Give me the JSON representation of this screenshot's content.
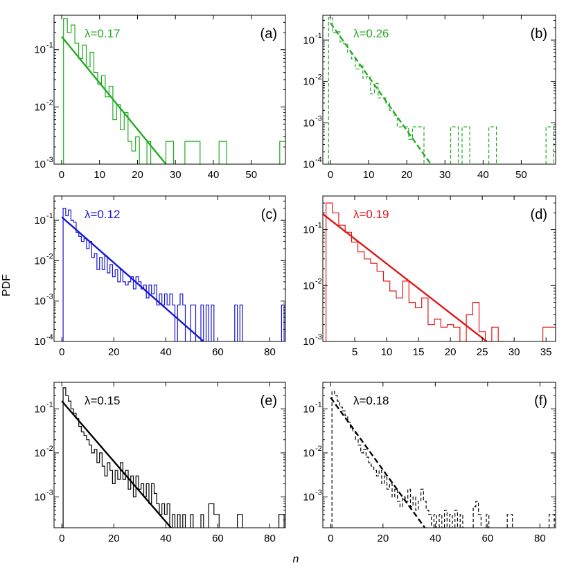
{
  "figure": {
    "ylabel": "PDF",
    "xlabel": "n"
  },
  "chart_data": [
    {
      "type": "line",
      "panel_label": "(a)",
      "lambda_label": "λ=0.17",
      "color": "#22aa22",
      "dashed": false,
      "xlim": [
        -2,
        59
      ],
      "ylim": [
        0.001,
        0.4
      ],
      "xticks": [
        0,
        10,
        20,
        30,
        40,
        50
      ],
      "xtick_labels": [
        "0",
        "10",
        "20",
        "30",
        "40",
        "50"
      ],
      "yticks": [
        0.001,
        0.01,
        0.1
      ],
      "ytick_labels": [
        "10",
        "10",
        "10"
      ],
      "ytick_exponents": [
        "-3",
        "-2",
        "-1"
      ],
      "fit": {
        "x": [
          0,
          27.5
        ],
        "y": [
          0.17,
          0.001
        ]
      },
      "histogram": [
        [
          1,
          0.35
        ],
        [
          2,
          0.2
        ],
        [
          3,
          0.27
        ],
        [
          4,
          0.13
        ],
        [
          5,
          0.07
        ],
        [
          6,
          0.12
        ],
        [
          7,
          0.05
        ],
        [
          8,
          0.09
        ],
        [
          9,
          0.04
        ],
        [
          10,
          0.025
        ],
        [
          11,
          0.035
        ],
        [
          12,
          0.015
        ],
        [
          13,
          0.023
        ],
        [
          14,
          0.006
        ],
        [
          15,
          0.011
        ],
        [
          16,
          0.004
        ],
        [
          17,
          0.008
        ],
        [
          18,
          0.0025
        ],
        [
          19,
          0.0017
        ],
        [
          20,
          0.003
        ],
        [
          21,
          0.001
        ],
        [
          23,
          0.0025
        ],
        [
          24,
          0.001
        ],
        [
          28,
          0.0025
        ],
        [
          29,
          0.0025
        ],
        [
          33,
          0.0025
        ],
        [
          34,
          0.0025
        ],
        [
          35,
          0.0025
        ],
        [
          36,
          0.0025
        ],
        [
          42,
          0.0025
        ],
        [
          43,
          0.0025
        ],
        [
          58,
          0.0025
        ],
        [
          59,
          0.0025
        ]
      ]
    },
    {
      "type": "line",
      "panel_label": "(b)",
      "lambda_label": "λ=0.26",
      "color": "#22aa22",
      "dashed": true,
      "xlim": [
        -2,
        59
      ],
      "ylim": [
        0.0001,
        0.4
      ],
      "xticks": [
        0,
        10,
        20,
        30,
        40,
        50
      ],
      "xtick_labels": [
        "0",
        "10",
        "20",
        "30",
        "40",
        "50"
      ],
      "yticks": [
        0.0001,
        0.001,
        0.01,
        0.1
      ],
      "ytick_labels": [
        "10",
        "10",
        "10",
        "10"
      ],
      "ytick_exponents": [
        "-4",
        "-3",
        "-2",
        "-1"
      ],
      "fit": {
        "x": [
          0,
          26.3
        ],
        "y": [
          0.26,
          0.0001
        ]
      },
      "histogram": [
        [
          0,
          0.35
        ],
        [
          1,
          0.15
        ],
        [
          2,
          0.16
        ],
        [
          3,
          0.09
        ],
        [
          4,
          0.08
        ],
        [
          5,
          0.05
        ],
        [
          6,
          0.035
        ],
        [
          7,
          0.02
        ],
        [
          8,
          0.025
        ],
        [
          9,
          0.012
        ],
        [
          10,
          0.013
        ],
        [
          11,
          0.005
        ],
        [
          12,
          0.009
        ],
        [
          13,
          0.004
        ],
        [
          14,
          0.004
        ],
        [
          15,
          0.003
        ],
        [
          16,
          0.002
        ],
        [
          17,
          0.0015
        ],
        [
          18,
          0.0008
        ],
        [
          19,
          0.0008
        ],
        [
          20,
          0.0008
        ],
        [
          21,
          0.0004
        ],
        [
          22,
          0.0008
        ],
        [
          23,
          0.0008
        ],
        [
          24,
          0.0008
        ],
        [
          32,
          0.0008
        ],
        [
          33,
          0.0008
        ],
        [
          35,
          0.0008
        ],
        [
          36,
          0.0008
        ],
        [
          42,
          0.0008
        ],
        [
          43,
          0.0008
        ],
        [
          57,
          0.0008
        ],
        [
          58,
          0.0008
        ]
      ]
    },
    {
      "type": "line",
      "panel_label": "(c)",
      "lambda_label": "λ=0.12",
      "color": "#1515d6",
      "dashed": false,
      "xlim": [
        -3,
        86
      ],
      "ylim": [
        0.0001,
        0.4
      ],
      "xticks": [
        0,
        20,
        40,
        60,
        80
      ],
      "xtick_labels": [
        "0",
        "20",
        "40",
        "60",
        "80"
      ],
      "yticks": [
        0.0001,
        0.001,
        0.01,
        0.1
      ],
      "ytick_labels": [
        "10",
        "10",
        "10",
        "10"
      ],
      "ytick_exponents": [
        "-4",
        "-3",
        "-2",
        "-1"
      ],
      "fit": {
        "x": [
          0,
          54.5
        ],
        "y": [
          0.12,
          0.0001
        ]
      },
      "histogram": [
        [
          1,
          0.2
        ],
        [
          2,
          0.13
        ],
        [
          3,
          0.18
        ],
        [
          4,
          0.1
        ],
        [
          5,
          0.09
        ],
        [
          6,
          0.05
        ],
        [
          7,
          0.04
        ],
        [
          8,
          0.03
        ],
        [
          9,
          0.035
        ],
        [
          10,
          0.02
        ],
        [
          11,
          0.03
        ],
        [
          12,
          0.012
        ],
        [
          13,
          0.015
        ],
        [
          14,
          0.006
        ],
        [
          15,
          0.012
        ],
        [
          16,
          0.006
        ],
        [
          17,
          0.013
        ],
        [
          18,
          0.005
        ],
        [
          19,
          0.008
        ],
        [
          20,
          0.004
        ],
        [
          21,
          0.006
        ],
        [
          22,
          0.003
        ],
        [
          23,
          0.006
        ],
        [
          24,
          0.003
        ],
        [
          25,
          0.0025
        ],
        [
          26,
          0.003
        ],
        [
          27,
          0.004
        ],
        [
          28,
          0.002
        ],
        [
          29,
          0.004
        ],
        [
          30,
          0.003
        ],
        [
          31,
          0.002
        ],
        [
          32,
          0.0025
        ],
        [
          33,
          0.0012
        ],
        [
          34,
          0.0025
        ],
        [
          35,
          0.0015
        ],
        [
          36,
          0.0025
        ],
        [
          37,
          0.0008
        ],
        [
          38,
          0.0015
        ],
        [
          39,
          0.0008
        ],
        [
          40,
          0.0015
        ],
        [
          41,
          0.0008
        ],
        [
          42,
          0.0015
        ],
        [
          43,
          0.0008
        ],
        [
          45,
          0.0008
        ],
        [
          46,
          0.0015
        ],
        [
          47,
          0.0008
        ],
        [
          50,
          0.0008
        ],
        [
          51,
          0.0008
        ],
        [
          54,
          0.0008
        ],
        [
          56,
          0.0008
        ],
        [
          58,
          0.0008
        ],
        [
          67,
          0.0008
        ],
        [
          69,
          0.0008
        ],
        [
          85,
          0.0008
        ]
      ]
    },
    {
      "type": "line",
      "panel_label": "(d)",
      "lambda_label": "λ=0.19",
      "color": "#e01515",
      "dashed": false,
      "xlim": [
        0,
        36.5
      ],
      "ylim": [
        0.001,
        0.4
      ],
      "xticks": [
        5,
        10,
        15,
        20,
        25,
        30,
        35
      ],
      "xtick_labels": [
        "5",
        "10",
        "15",
        "20",
        "25",
        "30",
        "35"
      ],
      "yticks": [
        0.001,
        0.01,
        0.1
      ],
      "ytick_labels": [
        "10",
        "10",
        "10"
      ],
      "ytick_exponents": [
        "-3",
        "-2",
        "-1"
      ],
      "fit": {
        "x": [
          0,
          25.7
        ],
        "y": [
          0.19,
          0.001
        ]
      },
      "histogram": [
        [
          1,
          0.3
        ],
        [
          2,
          0.2
        ],
        [
          3,
          0.12
        ],
        [
          4,
          0.09
        ],
        [
          5,
          0.06
        ],
        [
          6,
          0.04
        ],
        [
          7,
          0.03
        ],
        [
          8,
          0.025
        ],
        [
          9,
          0.018
        ],
        [
          10,
          0.012
        ],
        [
          11,
          0.008
        ],
        [
          12,
          0.006
        ],
        [
          13,
          0.012
        ],
        [
          14,
          0.005
        ],
        [
          15,
          0.004
        ],
        [
          16,
          0.006
        ],
        [
          17,
          0.002
        ],
        [
          18,
          0.0025
        ],
        [
          19,
          0.0018
        ],
        [
          20,
          0.002
        ],
        [
          21,
          0.0018
        ],
        [
          22,
          0.001
        ],
        [
          23,
          0.003
        ],
        [
          24,
          0.005
        ],
        [
          25,
          0.0015
        ],
        [
          26,
          0.001
        ],
        [
          27,
          0.0018
        ],
        [
          28,
          0.001
        ],
        [
          35,
          0.0018
        ],
        [
          36,
          0.0018
        ]
      ]
    },
    {
      "type": "line",
      "panel_label": "(e)",
      "lambda_label": "λ=0.15",
      "color": "#000000",
      "dashed": false,
      "xlim": [
        -3,
        86
      ],
      "ylim": [
        0.0002,
        0.4
      ],
      "xticks": [
        0,
        20,
        40,
        60,
        80
      ],
      "xtick_labels": [
        "0",
        "20",
        "40",
        "60",
        "80"
      ],
      "yticks": [
        0.001,
        0.01,
        0.1
      ],
      "ytick_labels": [
        "10",
        "10",
        "10"
      ],
      "ytick_exponents": [
        "-3",
        "-2",
        "-1"
      ],
      "fit": {
        "x": [
          0,
          42
        ],
        "y": [
          0.15,
          0.0002
        ]
      },
      "histogram": [
        [
          1,
          0.3
        ],
        [
          2,
          0.2
        ],
        [
          3,
          0.15
        ],
        [
          4,
          0.1
        ],
        [
          5,
          0.08
        ],
        [
          6,
          0.06
        ],
        [
          7,
          0.04
        ],
        [
          8,
          0.03
        ],
        [
          9,
          0.025
        ],
        [
          10,
          0.02
        ],
        [
          11,
          0.015
        ],
        [
          12,
          0.01
        ],
        [
          13,
          0.012
        ],
        [
          14,
          0.006
        ],
        [
          15,
          0.01
        ],
        [
          16,
          0.005
        ],
        [
          17,
          0.003
        ],
        [
          18,
          0.006
        ],
        [
          19,
          0.004
        ],
        [
          20,
          0.002
        ],
        [
          21,
          0.004
        ],
        [
          22,
          0.0025
        ],
        [
          23,
          0.006
        ],
        [
          24,
          0.0025
        ],
        [
          25,
          0.004
        ],
        [
          26,
          0.0015
        ],
        [
          27,
          0.003
        ],
        [
          28,
          0.001
        ],
        [
          29,
          0.003
        ],
        [
          30,
          0.0015
        ],
        [
          31,
          0.002
        ],
        [
          32,
          0.001
        ],
        [
          33,
          0.002
        ],
        [
          34,
          0.0007
        ],
        [
          35,
          0.002
        ],
        [
          36,
          0.0012
        ],
        [
          37,
          0.0007
        ],
        [
          38,
          0.0004
        ],
        [
          39,
          0.0007
        ],
        [
          40,
          0.0004
        ],
        [
          41,
          0.0007
        ],
        [
          43,
          0.0004
        ],
        [
          45,
          0.0004
        ],
        [
          47,
          0.0004
        ],
        [
          50,
          0.0004
        ],
        [
          54,
          0.0004
        ],
        [
          57,
          0.0007
        ],
        [
          58,
          0.0007
        ],
        [
          59,
          0.0004
        ],
        [
          60,
          0.0004
        ],
        [
          68,
          0.0004
        ],
        [
          69,
          0.0004
        ],
        [
          84,
          0.0004
        ],
        [
          85,
          0.0004
        ]
      ]
    },
    {
      "type": "line",
      "panel_label": "(f)",
      "lambda_label": "λ=0.18",
      "color": "#000000",
      "dashed": true,
      "xlim": [
        -3,
        86
      ],
      "ylim": [
        0.0002,
        0.4
      ],
      "xticks": [
        0,
        20,
        40,
        60,
        80
      ],
      "xtick_labels": [
        "0",
        "20",
        "40",
        "60",
        "80"
      ],
      "yticks": [
        0.001,
        0.01,
        0.1
      ],
      "ytick_labels": [
        "10",
        "10",
        "10"
      ],
      "ytick_exponents": [
        "-3",
        "-2",
        "-1"
      ],
      "fit": {
        "x": [
          0,
          36
        ],
        "y": [
          0.18,
          0.0002
        ]
      },
      "histogram": [
        [
          1,
          0.25
        ],
        [
          2,
          0.2
        ],
        [
          3,
          0.15
        ],
        [
          4,
          0.11
        ],
        [
          5,
          0.09
        ],
        [
          6,
          0.07
        ],
        [
          7,
          0.05
        ],
        [
          8,
          0.035
        ],
        [
          9,
          0.03
        ],
        [
          10,
          0.02
        ],
        [
          11,
          0.015
        ],
        [
          12,
          0.01
        ],
        [
          13,
          0.012
        ],
        [
          14,
          0.008
        ],
        [
          15,
          0.006
        ],
        [
          16,
          0.005
        ],
        [
          17,
          0.004
        ],
        [
          18,
          0.003
        ],
        [
          19,
          0.004
        ],
        [
          20,
          0.002
        ],
        [
          21,
          0.003
        ],
        [
          22,
          0.0015
        ],
        [
          23,
          0.002
        ],
        [
          24,
          0.001
        ],
        [
          25,
          0.0015
        ],
        [
          26,
          0.0008
        ],
        [
          27,
          0.0006
        ],
        [
          28,
          0.001
        ],
        [
          29,
          0.0008
        ],
        [
          30,
          0.0015
        ],
        [
          31,
          0.0006
        ],
        [
          32,
          0.001
        ],
        [
          33,
          0.0005
        ],
        [
          34,
          0.0008
        ],
        [
          35,
          0.0015
        ],
        [
          36,
          0.0008
        ],
        [
          37,
          0.0005
        ],
        [
          38,
          0.0004
        ],
        [
          40,
          0.0004
        ],
        [
          42,
          0.0004
        ],
        [
          44,
          0.0005
        ],
        [
          46,
          0.0004
        ],
        [
          48,
          0.0005
        ],
        [
          50,
          0.0004
        ],
        [
          55,
          0.0006
        ],
        [
          56,
          0.0008
        ],
        [
          57,
          0.0004
        ],
        [
          60,
          0.0004
        ],
        [
          68,
          0.0004
        ],
        [
          69,
          0.0004
        ],
        [
          84,
          0.0004
        ],
        [
          85,
          0.0004
        ]
      ]
    }
  ]
}
